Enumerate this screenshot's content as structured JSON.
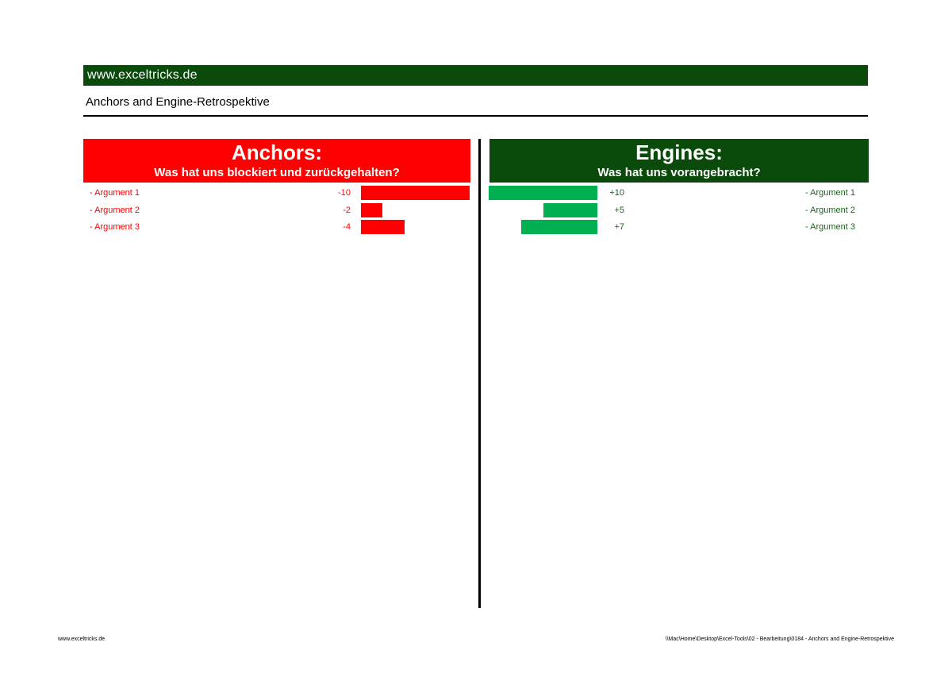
{
  "brand": {
    "url_label": "www.exceltricks.de"
  },
  "document": {
    "title": "Anchors and Engine-Retrospektive"
  },
  "anchors": {
    "title": "Anchors:",
    "subtitle": "Was hat uns blockiert und zurückgehalten?",
    "items": [
      {
        "label": "- Argument 1",
        "value": -10,
        "value_label": "-10"
      },
      {
        "label": "- Argument 2",
        "value": -2,
        "value_label": "-2"
      },
      {
        "label": "- Argument 3",
        "value": -4,
        "value_label": "-4"
      }
    ]
  },
  "engines": {
    "title": "Engines:",
    "subtitle": "Was hat uns vorangebracht?",
    "items": [
      {
        "label": "- Argument 1",
        "value": 10,
        "value_label": "+10"
      },
      {
        "label": "- Argument 2",
        "value": 5,
        "value_label": "+5"
      },
      {
        "label": "- Argument 3",
        "value": 7,
        "value_label": "+7"
      }
    ]
  },
  "footer": {
    "left": "www.exceltricks.de",
    "right": "\\\\Mac\\Home\\Desktop\\Excel-Tools\\02 - Bearbeitung\\0184 - Anchors and Engine-Retrospektive"
  },
  "colors": {
    "brand_green": "#0a4a0a",
    "anchor_red": "#fe0000",
    "engine_bar_green": "#00b050",
    "engine_text_green": "#1e641e"
  },
  "chart_data": [
    {
      "type": "bar",
      "orientation": "horizontal",
      "title": "Anchors: Was hat uns blockiert und zurückgehalten?",
      "categories": [
        "Argument 1",
        "Argument 2",
        "Argument 3"
      ],
      "values": [
        -10,
        -2,
        -4
      ],
      "bar_color": "#fe0000",
      "xlim": [
        0,
        -10
      ],
      "legend": false,
      "grid": false,
      "value_labels": [
        "-10",
        "-2",
        "-4"
      ]
    },
    {
      "type": "bar",
      "orientation": "horizontal",
      "title": "Engines: Was hat uns vorangebracht?",
      "categories": [
        "Argument 1",
        "Argument 2",
        "Argument 3"
      ],
      "values": [
        10,
        5,
        7
      ],
      "bar_color": "#00b050",
      "xlim": [
        10,
        0
      ],
      "legend": false,
      "grid": false,
      "value_labels": [
        "+10",
        "+5",
        "+7"
      ]
    }
  ]
}
